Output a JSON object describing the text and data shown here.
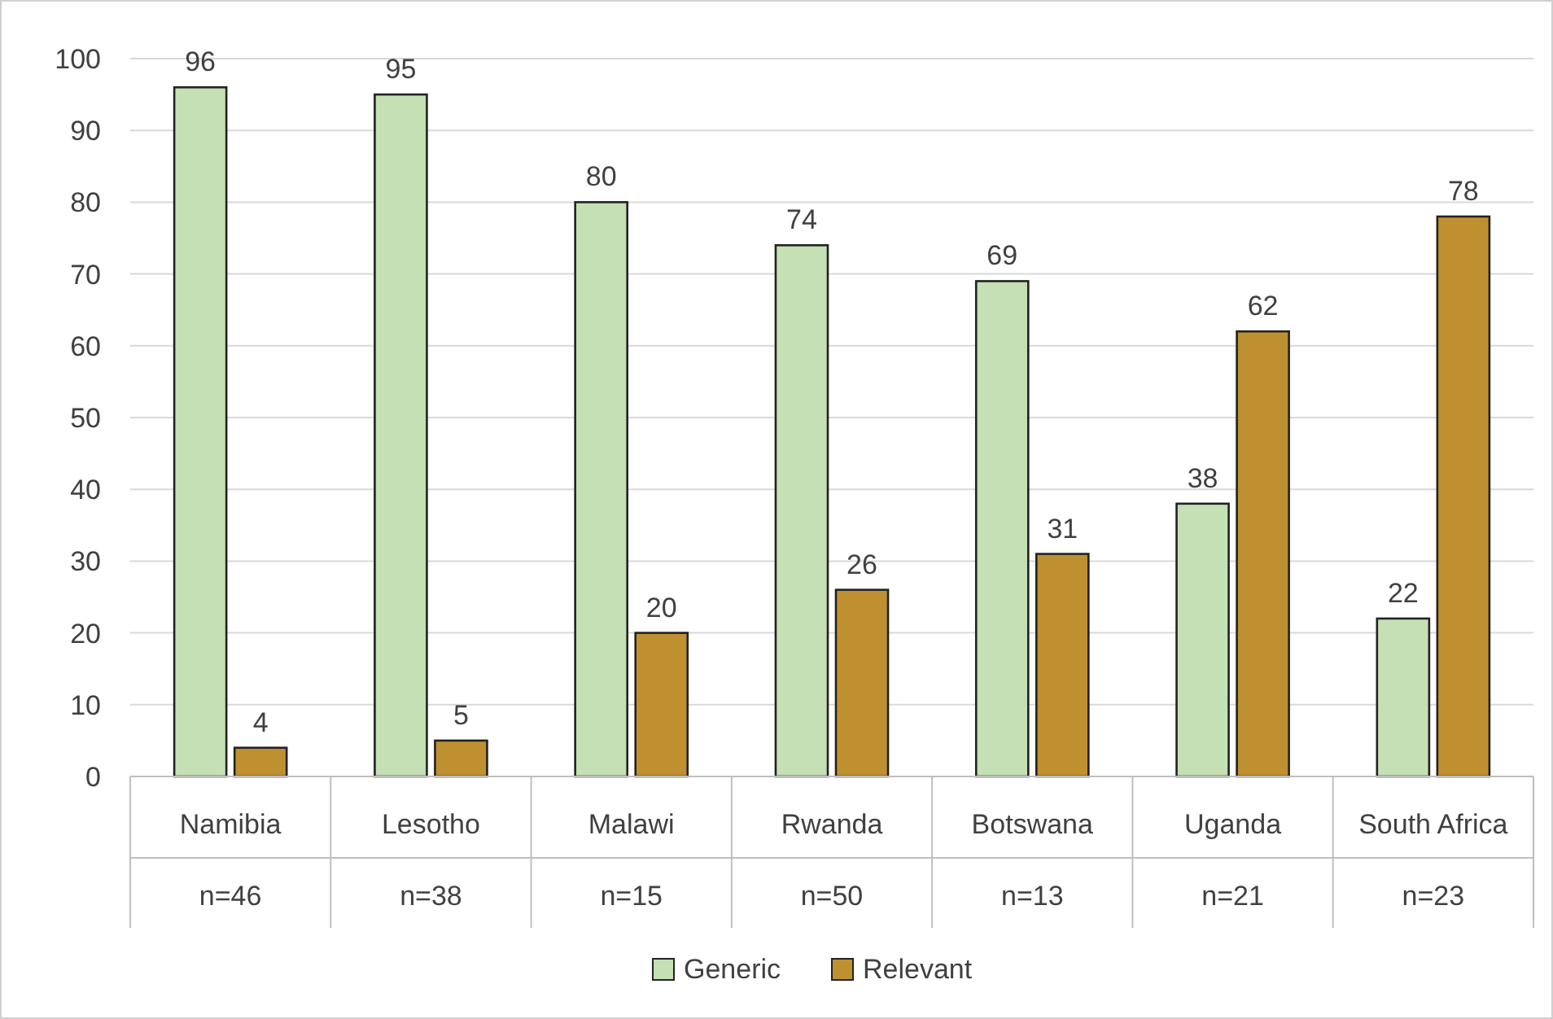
{
  "chart_data": {
    "type": "bar",
    "categories": [
      "Namibia\nn=46",
      "Lesotho\nn=38",
      "Malawi\nn=15",
      "Rwanda\nn=50",
      "Botswana\nn=13",
      "Uganda\nn=21",
      "South Africa\nn=23"
    ],
    "series": [
      {
        "name": "Generic",
        "color": "#c5e0b4",
        "values": [
          96,
          95,
          80,
          74,
          69,
          38,
          22
        ]
      },
      {
        "name": "Relevant",
        "color": "#bf9030",
        "values": [
          4,
          5,
          20,
          26,
          31,
          62,
          78
        ]
      }
    ],
    "ylim": [
      0,
      100
    ],
    "yticks": [
      0,
      10,
      20,
      30,
      40,
      50,
      60,
      70,
      80,
      90,
      100
    ],
    "grid": "y",
    "legend": "bottom",
    "data_labels": true
  }
}
